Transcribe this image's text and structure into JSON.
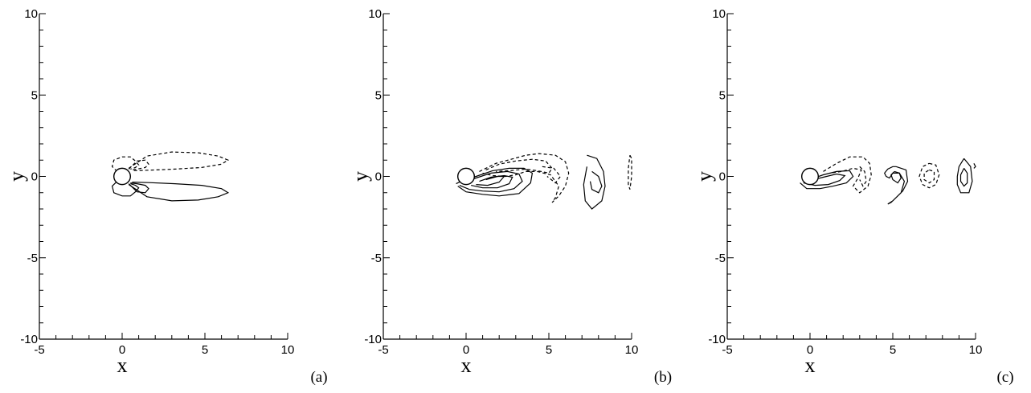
{
  "chart_data": [
    {
      "type": "contour",
      "panel_label": "(a)",
      "xlabel": "x",
      "ylabel": "y",
      "xlim": [
        -5,
        10
      ],
      "ylim": [
        -10,
        10
      ],
      "xticks": [
        "-5",
        "0",
        "5",
        "10"
      ],
      "yticks": [
        "-10",
        "-5",
        "0",
        "5",
        "10"
      ],
      "grid": false,
      "line_styles": {
        "positive": "solid",
        "negative": "dashed"
      },
      "contours": [
        {
          "sign": "negative",
          "x": [
            0.4,
            1.5,
            3.0,
            4.6,
            5.8,
            6.4,
            6.0,
            4.8,
            3.2,
            1.6,
            0.6
          ],
          "y": [
            0.5,
            1.25,
            1.5,
            1.45,
            1.25,
            1.0,
            0.75,
            0.55,
            0.45,
            0.38,
            0.35
          ]
        },
        {
          "sign": "positive",
          "x": [
            0.4,
            1.5,
            3.0,
            4.6,
            5.8,
            6.4,
            6.0,
            4.8,
            3.2,
            1.6,
            0.6
          ],
          "y": [
            -0.5,
            -1.25,
            -1.5,
            -1.45,
            -1.25,
            -1.0,
            -0.75,
            -0.55,
            -0.45,
            -0.38,
            -0.35
          ]
        },
        {
          "sign": "negative",
          "x": [
            0.4,
            0.9,
            1.4,
            1.6,
            1.4,
            0.9,
            0.5
          ],
          "y": [
            0.45,
            0.95,
            1.0,
            0.75,
            0.55,
            0.45,
            0.4
          ]
        },
        {
          "sign": "positive",
          "x": [
            0.4,
            0.9,
            1.4,
            1.6,
            1.4,
            0.9,
            0.5
          ],
          "y": [
            -0.45,
            -0.95,
            -1.0,
            -0.75,
            -0.55,
            -0.45,
            -0.4
          ]
        },
        {
          "sign": "negative",
          "x": [
            -0.3,
            -0.6,
            -0.5,
            0.0,
            0.5,
            0.8,
            1.0,
            0.8,
            0.5
          ],
          "y": [
            0.3,
            0.6,
            1.0,
            1.2,
            1.2,
            0.95,
            0.7,
            0.55,
            0.45
          ]
        },
        {
          "sign": "positive",
          "x": [
            -0.3,
            -0.6,
            -0.5,
            0.0,
            0.5,
            0.8,
            1.0,
            0.8,
            0.5
          ],
          "y": [
            -0.3,
            -0.6,
            -1.0,
            -1.2,
            -1.2,
            -0.95,
            -0.7,
            -0.55,
            -0.45
          ]
        }
      ]
    },
    {
      "type": "contour",
      "panel_label": "(b)",
      "xlabel": "x",
      "ylabel": "y",
      "xlim": [
        -5,
        10
      ],
      "ylim": [
        -10,
        10
      ],
      "xticks": [
        "-5",
        "0",
        "5",
        "10"
      ],
      "yticks": [
        "-10",
        "-5",
        "0",
        "5",
        "10"
      ],
      "grid": false,
      "line_styles": {
        "positive": "solid",
        "negative": "dashed"
      },
      "contours": [
        {
          "sign": "positive",
          "x": [
            -0.5,
            0.0,
            1.0,
            2.0,
            3.2,
            3.9,
            4.0,
            3.5,
            2.6,
            1.6,
            0.6,
            -0.2,
            -0.6
          ],
          "y": [
            -0.6,
            -0.95,
            -1.1,
            -1.2,
            -1.05,
            -0.4,
            0.2,
            0.5,
            0.5,
            0.35,
            0.0,
            -0.25,
            -0.45
          ]
        },
        {
          "sign": "positive",
          "x": [
            -0.4,
            0.2,
            1.0,
            2.0,
            2.9,
            3.4,
            3.2,
            2.5,
            1.5,
            0.6,
            0.0
          ],
          "y": [
            -0.55,
            -0.8,
            -0.9,
            -0.95,
            -0.75,
            -0.3,
            0.15,
            0.3,
            0.2,
            -0.1,
            -0.3
          ]
        },
        {
          "sign": "positive",
          "x": [
            0.3,
            1.0,
            1.9,
            2.6,
            2.8,
            2.3,
            1.5,
            0.8
          ],
          "y": [
            -0.55,
            -0.7,
            -0.7,
            -0.45,
            -0.05,
            0.05,
            -0.05,
            -0.3
          ]
        },
        {
          "sign": "positive",
          "x": [
            0.6,
            1.3,
            2.0,
            2.3,
            1.9,
            1.2
          ],
          "y": [
            -0.5,
            -0.55,
            -0.35,
            0.0,
            0.0,
            -0.2
          ]
        },
        {
          "sign": "negative",
          "x": [
            0.8,
            1.8,
            2.9,
            3.6,
            4.4,
            5.4,
            6.0,
            6.2,
            6.0,
            5.6,
            5.2,
            5.4,
            5.6,
            5.1,
            4.3,
            3.6,
            3.0,
            2.4,
            1.6,
            1.0
          ],
          "y": [
            0.3,
            0.8,
            1.1,
            1.3,
            1.4,
            1.3,
            0.9,
            0.2,
            -0.6,
            -1.2,
            -1.6,
            -1.3,
            -0.6,
            0.1,
            0.3,
            0.3,
            0.1,
            0.0,
            0.05,
            0.2
          ]
        },
        {
          "sign": "negative",
          "x": [
            1.2,
            2.0,
            3.0,
            4.0,
            4.8,
            5.2,
            5.0,
            4.3,
            3.6,
            2.6,
            1.8
          ],
          "y": [
            0.4,
            0.75,
            0.95,
            1.05,
            0.95,
            0.5,
            0.2,
            0.35,
            0.45,
            0.35,
            0.3
          ]
        },
        {
          "sign": "negative",
          "x": [
            4.6,
            5.3,
            5.7,
            5.4,
            4.9
          ],
          "y": [
            0.6,
            0.5,
            0.0,
            -0.4,
            0.0
          ]
        },
        {
          "sign": "positive",
          "x": [
            7.3,
            7.9,
            8.3,
            8.4,
            8.2,
            7.6,
            7.2,
            7.1,
            7.3
          ],
          "y": [
            1.3,
            1.1,
            0.3,
            -0.6,
            -1.5,
            -2.0,
            -1.5,
            -0.5,
            0.6
          ]
        },
        {
          "sign": "positive",
          "x": [
            7.6,
            8.0,
            8.2,
            8.0,
            7.6,
            7.5
          ],
          "y": [
            0.3,
            0.0,
            -0.6,
            -1.0,
            -0.8,
            -0.3
          ]
        },
        {
          "sign": "negative",
          "x": [
            9.9,
            10.0,
            10.0,
            9.9,
            9.8,
            9.8,
            9.9
          ],
          "y": [
            1.3,
            1.1,
            0.0,
            -0.8,
            -0.5,
            0.5,
            1.3
          ]
        }
      ]
    },
    {
      "type": "contour",
      "panel_label": "(c)",
      "xlabel": "x",
      "ylabel": "y",
      "xlim": [
        -5,
        10
      ],
      "ylim": [
        -10,
        10
      ],
      "xticks": [
        "-5",
        "0",
        "5",
        "10"
      ],
      "yticks": [
        "-10",
        "-5",
        "0",
        "5",
        "10"
      ],
      "grid": false,
      "line_styles": {
        "positive": "solid",
        "negative": "dashed"
      },
      "contours": [
        {
          "sign": "positive",
          "x": [
            -0.6,
            -0.2,
            0.6,
            1.4,
            2.2,
            2.6,
            2.4,
            1.6,
            0.8,
            0.1,
            -0.4
          ],
          "y": [
            -0.4,
            -0.75,
            -0.75,
            -0.6,
            -0.4,
            0.0,
            0.35,
            0.3,
            0.1,
            -0.15,
            -0.3
          ]
        },
        {
          "sign": "positive",
          "x": [
            -0.4,
            0.3,
            1.1,
            1.8,
            2.1,
            1.6,
            0.8,
            0.0
          ],
          "y": [
            -0.4,
            -0.55,
            -0.5,
            -0.25,
            0.05,
            0.15,
            -0.05,
            -0.25
          ]
        },
        {
          "sign": "negative",
          "x": [
            0.8,
            1.6,
            2.4,
            3.2,
            3.6,
            3.7,
            3.5,
            3.0,
            2.6,
            2.9,
            3.1,
            2.6,
            1.9,
            1.2
          ],
          "y": [
            0.3,
            0.8,
            1.2,
            1.2,
            0.8,
            0.1,
            -0.6,
            -1.0,
            -0.6,
            -0.1,
            0.4,
            0.5,
            0.3,
            0.2
          ]
        },
        {
          "sign": "negative",
          "x": [
            3.0,
            3.3,
            3.4,
            3.2,
            3.0
          ],
          "y": [
            0.6,
            0.3,
            -0.3,
            -0.6,
            -0.2
          ]
        },
        {
          "sign": "positive",
          "x": [
            5.2,
            5.8,
            5.9,
            5.6,
            4.9,
            4.7,
            5.0,
            5.5,
            5.7,
            5.4,
            5.0,
            4.8,
            4.6,
            4.5,
            4.7,
            5.0,
            5.2
          ],
          "y": [
            0.6,
            0.4,
            -0.3,
            -0.9,
            -1.6,
            -1.7,
            -1.5,
            -1.0,
            -0.3,
            0.2,
            0.2,
            -0.1,
            0.0,
            0.2,
            0.45,
            0.6,
            0.6
          ]
        },
        {
          "sign": "positive",
          "x": [
            5.1,
            5.4,
            5.5,
            5.3,
            5.0,
            4.9,
            5.1
          ],
          "y": [
            0.3,
            0.2,
            -0.1,
            -0.4,
            -0.2,
            0.1,
            0.3
          ]
        },
        {
          "sign": "negative",
          "x": [
            7.2,
            7.6,
            7.8,
            7.6,
            7.2,
            6.8,
            6.6,
            6.8,
            7.2
          ],
          "y": [
            0.8,
            0.7,
            0.1,
            -0.5,
            -0.7,
            -0.5,
            0.0,
            0.6,
            0.8
          ]
        },
        {
          "sign": "negative",
          "x": [
            7.2,
            7.5,
            7.5,
            7.2,
            6.9,
            6.9,
            7.2
          ],
          "y": [
            0.4,
            0.3,
            -0.2,
            -0.4,
            -0.2,
            0.2,
            0.4
          ]
        },
        {
          "sign": "positive",
          "x": [
            9.3,
            9.7,
            9.8,
            9.6,
            9.1,
            8.9,
            8.9,
            9.0,
            9.3
          ],
          "y": [
            1.1,
            0.6,
            -0.3,
            -1.0,
            -1.0,
            -0.5,
            0.0,
            0.6,
            1.1
          ]
        },
        {
          "sign": "positive",
          "x": [
            9.3,
            9.5,
            9.5,
            9.3,
            9.1,
            9.1,
            9.3
          ],
          "y": [
            0.5,
            0.2,
            -0.4,
            -0.6,
            -0.3,
            0.1,
            0.5
          ]
        },
        {
          "sign": "positive",
          "x": [
            9.9,
            10.0,
            9.9
          ],
          "y": [
            0.8,
            0.6,
            0.5
          ]
        }
      ]
    }
  ]
}
